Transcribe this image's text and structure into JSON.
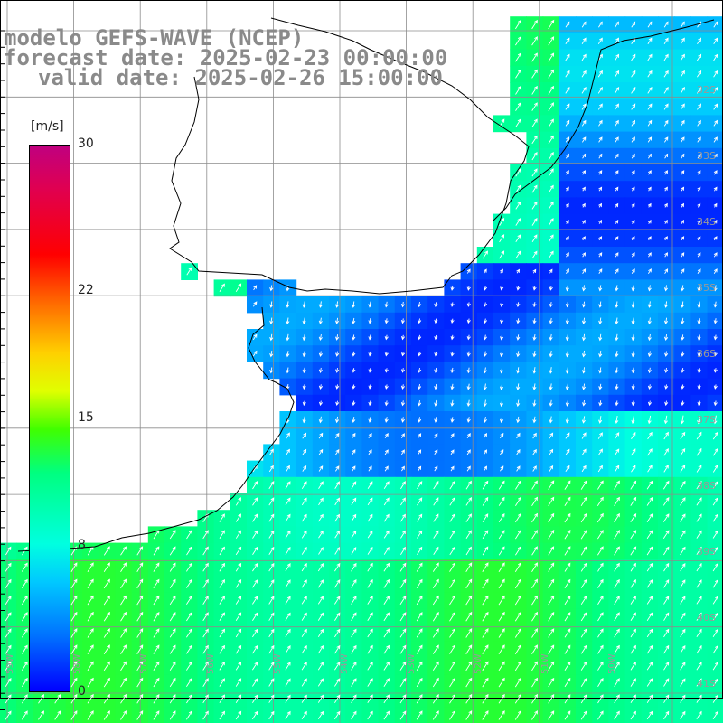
{
  "title": {
    "model": "modelo GEFS-WAVE (NCEP)",
    "forecast": "forecast date: 2025-02-23 00:00:00",
    "valid": "valid date: 2025-02-26 15:00:00"
  },
  "colorbar": {
    "unit": "[m/s]",
    "ticks": [
      {
        "value": "30"
      },
      {
        "value": "22"
      },
      {
        "value": "15"
      },
      {
        "value": "8"
      },
      {
        "value": "0"
      }
    ],
    "min": 0,
    "max": 30
  },
  "lat_labels": [
    "32S",
    "33S",
    "34S",
    "35S",
    "36S",
    "37S",
    "38S",
    "39S",
    "40S",
    "41S"
  ],
  "lon_labels": [
    "59W",
    "58W",
    "57W",
    "56W",
    "55W",
    "54W",
    "53W",
    "52W",
    "51W",
    "50W"
  ],
  "colors": {
    "land": "#ffffff",
    "coast": "#000000",
    "grid": "#808080",
    "arrow": "#ffffff",
    "title": "#8a8a8a"
  }
}
